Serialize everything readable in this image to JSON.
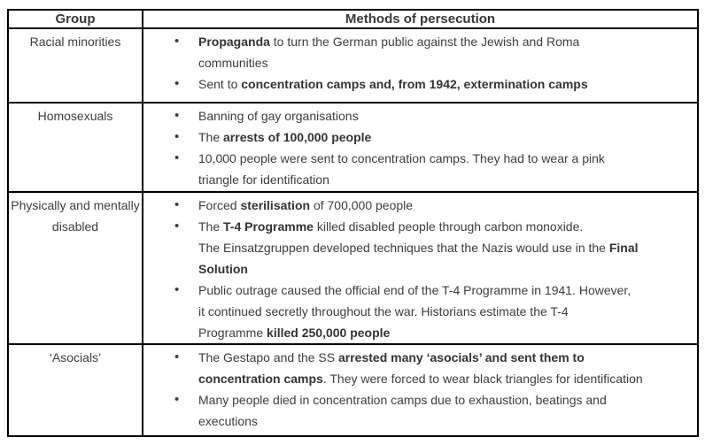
{
  "colors": {
    "background": "#ffffff",
    "border": "#000000",
    "text": "#3d3d3d"
  },
  "table": {
    "headers": [
      {
        "label": "Group"
      },
      {
        "label": "Methods of persecution"
      }
    ],
    "rows": [
      {
        "group": "Racial minorities",
        "bullets": [
          {
            "segments": [
              {
                "t": "Propaganda",
                "b": true
              },
              {
                "t": " to turn the German public against the Jewish and Roma"
              },
              {
                "br": true
              },
              {
                "t": "communities"
              }
            ]
          },
          {
            "segments": [
              {
                "t": "Sent to "
              },
              {
                "t": "concentration camps and, from 1942, extermination camps",
                "b": true
              }
            ]
          }
        ]
      },
      {
        "group": "Homosexuals",
        "bullets": [
          {
            "segments": [
              {
                "t": "Banning of gay organisations"
              }
            ]
          },
          {
            "segments": [
              {
                "t": "The "
              },
              {
                "t": "arrests of 100,000 people",
                "b": true
              }
            ]
          },
          {
            "segments": [
              {
                "t": "10,000 people were sent to concentration camps. They had to wear a pink"
              },
              {
                "br": true
              },
              {
                "t": "triangle for identification"
              }
            ]
          }
        ]
      },
      {
        "group": "Physically and mentally disabled",
        "bullets": [
          {
            "segments": [
              {
                "t": "Forced "
              },
              {
                "t": "sterilisation",
                "b": true
              },
              {
                "t": " of 700,000 people"
              }
            ]
          },
          {
            "segments": [
              {
                "t": "The "
              },
              {
                "t": "T-4 Programme",
                "b": true
              },
              {
                "t": " killed disabled people through carbon monoxide."
              },
              {
                "br": true
              },
              {
                "t": "The Einsatzgruppen developed techniques that the Nazis would use in the "
              },
              {
                "t": "Final",
                "b": true
              },
              {
                "br": true
              },
              {
                "t": "Solution",
                "b": true
              }
            ]
          },
          {
            "segments": [
              {
                "t": "Public outrage caused the official end of the T-4 Programme in 1941. However,"
              },
              {
                "br": true
              },
              {
                "t": "it continued secretly throughout the war. Historians estimate the T-4"
              },
              {
                "br": true
              },
              {
                "t": "Programme "
              },
              {
                "t": "killed 250,000 people",
                "b": true
              }
            ]
          }
        ]
      },
      {
        "group": "‘Asocials’",
        "bullets": [
          {
            "segments": [
              {
                "t": "The Gestapo and the SS "
              },
              {
                "t": "arrested many ‘asocials’ and sent them to",
                "b": true
              },
              {
                "br": true
              },
              {
                "t": "concentration camps",
                "b": true
              },
              {
                "t": ". They were forced to wear black triangles for identification"
              }
            ]
          },
          {
            "segments": [
              {
                "t": "Many people died in concentration camps due to exhaustion, beatings and"
              },
              {
                "br": true
              },
              {
                "t": "executions"
              }
            ]
          }
        ]
      }
    ]
  }
}
